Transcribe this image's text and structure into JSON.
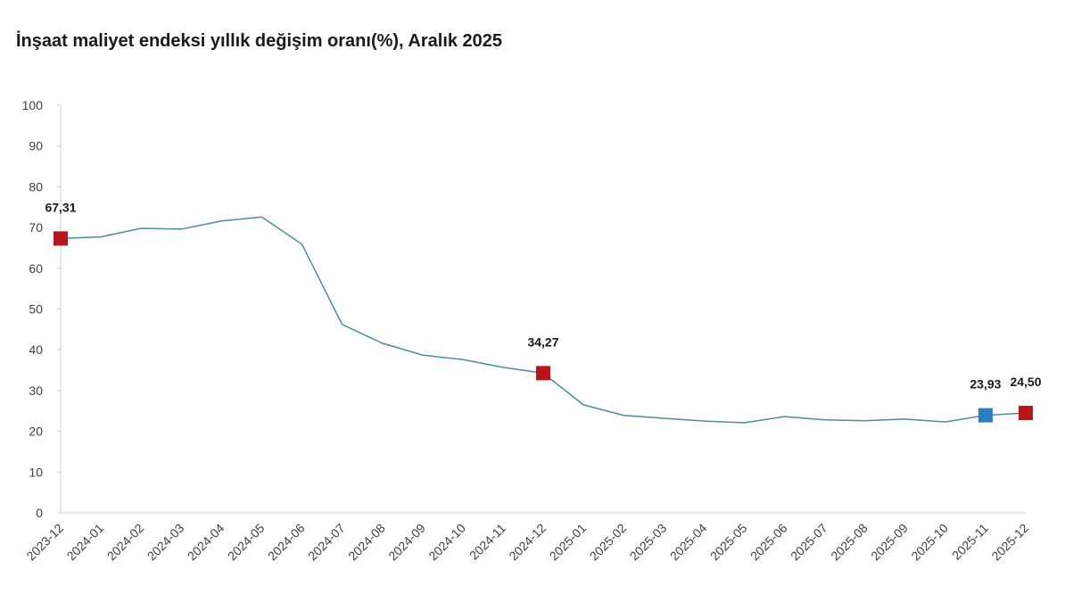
{
  "chart_data": {
    "type": "line",
    "title": "İnşaat maliyet endeksi yıllık değişim oranı(%), Aralık 2025",
    "categories": [
      "2023-12",
      "2024-01",
      "2024-02",
      "2024-03",
      "2024-04",
      "2024-05",
      "2024-06",
      "2024-07",
      "2024-08",
      "2024-09",
      "2024-10",
      "2024-11",
      "2024-12",
      "2025-01",
      "2025-02",
      "2025-03",
      "2025-04",
      "2025-05",
      "2025-06",
      "2025-07",
      "2025-08",
      "2025-09",
      "2025-10",
      "2025-11",
      "2025-12"
    ],
    "series": [
      {
        "color": "#4e8c9a",
        "values": [
          67.31,
          67.7,
          69.8,
          69.6,
          71.6,
          72.6,
          65.9,
          46.2,
          41.6,
          38.7,
          37.6,
          35.7,
          34.27,
          26.5,
          23.9,
          23.2,
          22.5,
          22.1,
          23.6,
          22.8,
          22.6,
          23.0,
          22.3,
          23.93,
          24.5
        ],
        "value_labels": [
          "67,31",
          null,
          null,
          null,
          null,
          null,
          null,
          null,
          null,
          null,
          null,
          null,
          "34,27",
          null,
          null,
          null,
          null,
          null,
          null,
          null,
          null,
          null,
          null,
          "23,93",
          "24,50"
        ],
        "marker_colors": [
          "#b8151c",
          null,
          null,
          null,
          null,
          null,
          null,
          null,
          null,
          null,
          null,
          null,
          "#b8151c",
          null,
          null,
          null,
          null,
          null,
          null,
          null,
          null,
          null,
          null,
          "#2f7bbf",
          "#b8151c"
        ]
      }
    ],
    "ylim": [
      0,
      100
    ],
    "yticks": [
      0,
      10,
      20,
      30,
      40,
      50,
      60,
      70,
      80,
      90,
      100
    ],
    "grid": false
  }
}
